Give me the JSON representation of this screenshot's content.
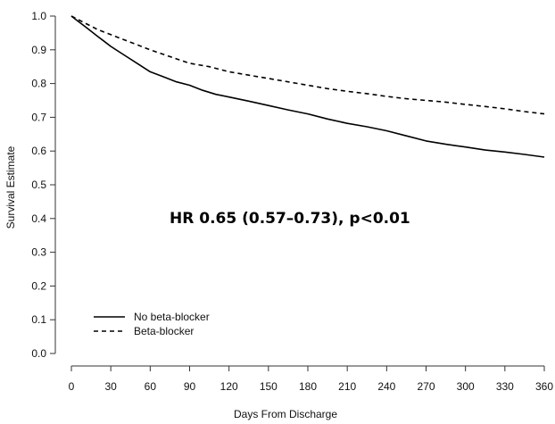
{
  "chart_data": {
    "type": "line",
    "title": "",
    "xlabel": "Days From Discharge",
    "ylabel": "Survival Estimate",
    "xlim": [
      0,
      360
    ],
    "ylim": [
      0,
      1.0
    ],
    "x_ticks": [
      0,
      30,
      60,
      90,
      120,
      150,
      180,
      210,
      240,
      270,
      300,
      330,
      360
    ],
    "y_ticks": [
      "0.0",
      "0.1",
      "0.2",
      "0.3",
      "0.4",
      "0.5",
      "0.6",
      "0.7",
      "0.8",
      "0.9",
      "1.0"
    ],
    "grid": false,
    "legend_position": "bottom-left",
    "annotation": "HR 0.65 (0.57–0.73), p<0.01",
    "series": [
      {
        "name": "No beta-blocker",
        "line_style": "solid",
        "x": [
          0,
          5,
          10,
          15,
          20,
          25,
          30,
          40,
          50,
          60,
          70,
          80,
          90,
          100,
          110,
          120,
          135,
          150,
          165,
          180,
          195,
          210,
          225,
          240,
          255,
          270,
          285,
          300,
          315,
          330,
          345,
          360
        ],
        "y": [
          1.0,
          0.985,
          0.97,
          0.955,
          0.94,
          0.925,
          0.91,
          0.885,
          0.86,
          0.835,
          0.82,
          0.805,
          0.795,
          0.78,
          0.768,
          0.76,
          0.748,
          0.735,
          0.722,
          0.71,
          0.695,
          0.682,
          0.672,
          0.66,
          0.645,
          0.63,
          0.62,
          0.612,
          0.603,
          0.597,
          0.59,
          0.582
        ]
      },
      {
        "name": "Beta-blocker",
        "line_style": "dashed",
        "x": [
          0,
          5,
          10,
          15,
          20,
          30,
          40,
          50,
          60,
          75,
          90,
          105,
          120,
          135,
          150,
          165,
          180,
          195,
          210,
          225,
          240,
          255,
          270,
          285,
          300,
          315,
          330,
          345,
          360
        ],
        "y": [
          1.0,
          0.99,
          0.98,
          0.97,
          0.96,
          0.945,
          0.93,
          0.915,
          0.9,
          0.88,
          0.86,
          0.85,
          0.835,
          0.825,
          0.815,
          0.805,
          0.795,
          0.785,
          0.777,
          0.77,
          0.762,
          0.755,
          0.75,
          0.745,
          0.738,
          0.732,
          0.725,
          0.717,
          0.71
        ]
      }
    ]
  }
}
